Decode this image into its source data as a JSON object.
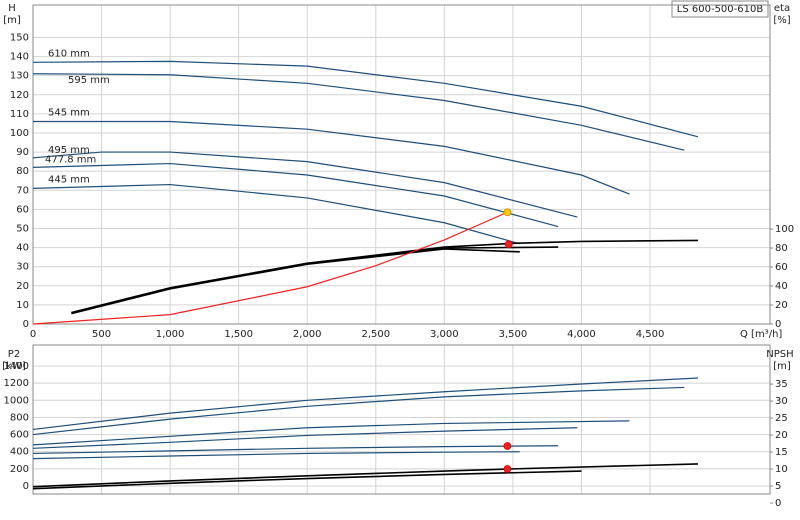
{
  "chart_data": [
    {
      "type": "line",
      "title": "LS 600-500-610B",
      "ylabel": "H",
      "yunit": "[m]",
      "y2label": "eta",
      "y2unit": "[%]",
      "xlabel": "Q [m³/h]",
      "xlim": [
        0,
        5375
      ],
      "ylim": [
        0,
        167
      ],
      "y2lim": [
        0,
        336
      ],
      "grid": true,
      "xticks": [
        0,
        500,
        {
          "value": 1000,
          "label": "1,000"
        },
        {
          "value": 1500,
          "label": "1,500"
        },
        {
          "value": 2000,
          "label": "2,000"
        },
        {
          "value": 2500,
          "label": "2,500"
        },
        {
          "value": 3000,
          "label": "3,000"
        },
        {
          "value": 3500,
          "label": "3,500"
        },
        {
          "value": 4000,
          "label": "4,000"
        },
        {
          "value": 4500,
          "label": "4,500"
        }
      ],
      "yticks": [
        0,
        10,
        20,
        30,
        40,
        50,
        60,
        70,
        80,
        90,
        100,
        110,
        120,
        130,
        140,
        150
      ],
      "y2ticks": [
        0,
        20,
        40,
        60,
        80,
        100
      ],
      "series": [
        {
          "name": "610 mm",
          "color": "#1f4e79",
          "x": [
            0,
            1000,
            2000,
            3000,
            4000,
            4850
          ],
          "values": [
            137,
            137.5,
            135,
            126,
            114,
            98
          ]
        },
        {
          "name": "595 mm",
          "color": "#1f4e79",
          "x": [
            0,
            1000,
            2000,
            3000,
            4000,
            4750
          ],
          "values": [
            131,
            130.5,
            126,
            117,
            104,
            91
          ]
        },
        {
          "name": "545 mm",
          "color": "#1f4e79",
          "x": [
            0,
            1000,
            2000,
            3000,
            4000,
            4350
          ],
          "values": [
            106,
            106,
            102,
            93,
            78,
            68
          ]
        },
        {
          "name": "495 mm",
          "color": "#1f4e79",
          "x": [
            0,
            500,
            1000,
            2000,
            3000,
            3970
          ],
          "values": [
            87,
            90,
            90,
            85,
            74,
            56
          ]
        },
        {
          "name": "477.8 mm",
          "color": "#1f4e79",
          "x": [
            0,
            1000,
            2000,
            3000,
            3830
          ],
          "values": [
            82,
            84,
            78,
            67,
            51
          ]
        },
        {
          "name": "445 mm",
          "color": "#1f4e79",
          "x": [
            0,
            1000,
            2000,
            3000,
            3550
          ],
          "values": [
            71,
            73,
            66,
            53,
            42
          ]
        },
        {
          "color": "#000000",
          "axis": "y2",
          "x": [
            280,
            1000,
            2000,
            3000,
            3500,
            4000,
            4850
          ],
          "values": [
            12,
            38,
            64,
            81,
            85,
            87,
            88
          ]
        },
        {
          "color": "#000000",
          "axis": "y2",
          "x": [
            280,
            1000,
            2000,
            3000,
            3830
          ],
          "values": [
            12,
            38,
            64,
            80,
            81
          ]
        },
        {
          "color": "#000000",
          "axis": "y2",
          "x": [
            280,
            1000,
            2000,
            3000,
            3550
          ],
          "values": [
            11,
            37,
            63,
            79,
            76
          ]
        },
        {
          "color": "#ee2222",
          "x": [
            0,
            1000,
            2000,
            2500,
            3000,
            3460
          ],
          "values": [
            0,
            4.9,
            19.5,
            30.5,
            44,
            58.5
          ]
        }
      ],
      "points": [
        {
          "color": "#ffcc00",
          "x": 3460,
          "y": 58.5
        },
        {
          "color": "#ee2222",
          "axis": "y2",
          "x": 3470,
          "y": 84
        }
      ]
    },
    {
      "type": "line",
      "ylabel": "P2",
      "yunit": "[kW]",
      "y2label": "NPSH",
      "y2unit": "[m]",
      "xlim": [
        0,
        5375
      ],
      "ylim": [
        -93,
        1645
      ],
      "y2lim": [
        2.65,
        46.5
      ],
      "grid": true,
      "xticks": [
        0,
        500,
        1000,
        1500,
        2000,
        2500,
        3000,
        3500,
        4000,
        4500
      ],
      "yticks": [
        0,
        200,
        400,
        600,
        800,
        1000,
        1200,
        1400
      ],
      "y2ticks": [
        0,
        5,
        10,
        15,
        20,
        25,
        30,
        35
      ],
      "series": [
        {
          "color": "#1f4e79",
          "x": [
            0,
            1000,
            2000,
            3000,
            4000,
            4850
          ],
          "values": [
            660,
            850,
            1000,
            1100,
            1190,
            1260
          ]
        },
        {
          "color": "#1f4e79",
          "x": [
            0,
            1000,
            2000,
            3000,
            4000,
            4750
          ],
          "values": [
            600,
            780,
            930,
            1040,
            1110,
            1150
          ]
        },
        {
          "color": "#1f4e79",
          "x": [
            0,
            1000,
            2000,
            3000,
            4350
          ],
          "values": [
            480,
            580,
            680,
            730,
            760
          ]
        },
        {
          "color": "#1f4e79",
          "x": [
            0,
            1000,
            2000,
            3000,
            3970
          ],
          "values": [
            440,
            510,
            590,
            640,
            680
          ]
        },
        {
          "color": "#1f4e79",
          "x": [
            0,
            1000,
            2000,
            3000,
            3830
          ],
          "values": [
            380,
            410,
            440,
            460,
            470
          ]
        },
        {
          "color": "#1f4e79",
          "x": [
            0,
            1000,
            2000,
            3000,
            3550
          ],
          "values": [
            320,
            350,
            380,
            395,
            400
          ]
        },
        {
          "color": "#000000",
          "axis": "y2",
          "x": [
            0,
            1000,
            2000,
            3000,
            3460,
            4850
          ],
          "values": [
            4.8,
            6.5,
            8,
            9.4,
            10,
            11.5
          ]
        },
        {
          "color": "#000000",
          "axis": "y2",
          "x": [
            0,
            1000,
            2000,
            3000,
            4000
          ],
          "values": [
            4.2,
            5.8,
            7.2,
            8.4,
            9.4
          ]
        }
      ],
      "points": [
        {
          "color": "#ee2222",
          "x": 3460,
          "y": 467
        },
        {
          "color": "#ee2222",
          "axis": "y2",
          "x": 3460,
          "y": 10
        }
      ]
    }
  ]
}
